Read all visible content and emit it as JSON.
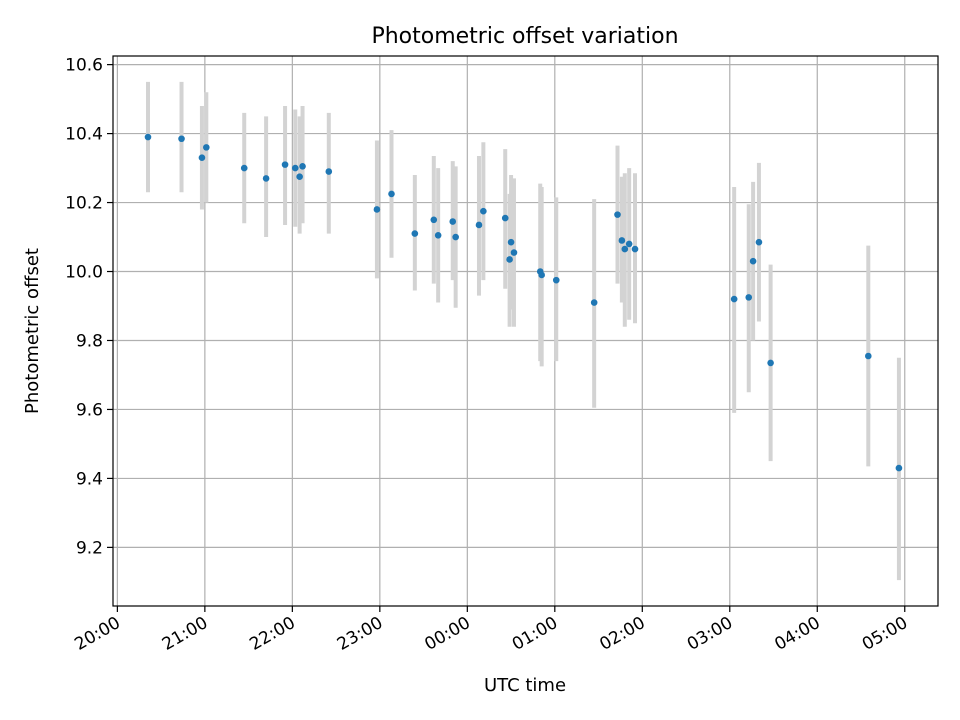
{
  "chart_data": {
    "type": "scatter",
    "title": "Photometric offset variation",
    "xlabel": "UTC time",
    "ylabel": "Photometric offset",
    "grid": true,
    "xlim_hours": [
      -4.05,
      5.38
    ],
    "ylim": [
      9.03,
      10.625
    ],
    "x_ticks": [
      {
        "h": -4,
        "label": "20:00"
      },
      {
        "h": -3,
        "label": "21:00"
      },
      {
        "h": -2,
        "label": "22:00"
      },
      {
        "h": -1,
        "label": "23:00"
      },
      {
        "h": 0,
        "label": "00:00"
      },
      {
        "h": 1,
        "label": "01:00"
      },
      {
        "h": 2,
        "label": "02:00"
      },
      {
        "h": 3,
        "label": "03:00"
      },
      {
        "h": 4,
        "label": "04:00"
      },
      {
        "h": 5,
        "label": "05:00"
      }
    ],
    "y_ticks": [
      {
        "v": 9.2,
        "label": "9.2"
      },
      {
        "v": 9.4,
        "label": "9.4"
      },
      {
        "v": 9.6,
        "label": "9.6"
      },
      {
        "v": 9.8,
        "label": "9.8"
      },
      {
        "v": 10.0,
        "label": "10.0"
      },
      {
        "v": 10.2,
        "label": "10.2"
      },
      {
        "v": 10.4,
        "label": "10.4"
      },
      {
        "v": 10.6,
        "label": "10.6"
      }
    ],
    "point_color": "#1f77b4",
    "errorbar_color": "#d3d3d3",
    "points": [
      {
        "time": "20:21",
        "y": 10.39,
        "lo": 10.23,
        "hi": 10.55
      },
      {
        "time": "20:44",
        "y": 10.385,
        "lo": 10.23,
        "hi": 10.55
      },
      {
        "time": "20:58",
        "y": 10.33,
        "lo": 10.18,
        "hi": 10.48
      },
      {
        "time": "21:01",
        "y": 10.36,
        "lo": 10.2,
        "hi": 10.52
      },
      {
        "time": "21:27",
        "y": 10.3,
        "lo": 10.14,
        "hi": 10.46
      },
      {
        "time": "21:42",
        "y": 10.27,
        "lo": 10.1,
        "hi": 10.45
      },
      {
        "time": "21:55",
        "y": 10.31,
        "lo": 10.135,
        "hi": 10.48
      },
      {
        "time": "22:02",
        "y": 10.3,
        "lo": 10.13,
        "hi": 10.47
      },
      {
        "time": "22:05",
        "y": 10.275,
        "lo": 10.11,
        "hi": 10.45
      },
      {
        "time": "22:07",
        "y": 10.305,
        "lo": 10.14,
        "hi": 10.48
      },
      {
        "time": "22:25",
        "y": 10.29,
        "lo": 10.11,
        "hi": 10.46
      },
      {
        "time": "22:58",
        "y": 10.18,
        "lo": 9.98,
        "hi": 10.38
      },
      {
        "time": "23:08",
        "y": 10.225,
        "lo": 10.04,
        "hi": 10.41
      },
      {
        "time": "23:24",
        "y": 10.11,
        "lo": 9.945,
        "hi": 10.28
      },
      {
        "time": "23:37",
        "y": 10.15,
        "lo": 9.965,
        "hi": 10.335
      },
      {
        "time": "23:40",
        "y": 10.105,
        "lo": 9.91,
        "hi": 10.3
      },
      {
        "time": "23:50",
        "y": 10.145,
        "lo": 9.975,
        "hi": 10.32
      },
      {
        "time": "23:52",
        "y": 10.1,
        "lo": 9.895,
        "hi": 10.305
      },
      {
        "time": "00:08",
        "y": 10.135,
        "lo": 9.93,
        "hi": 10.335
      },
      {
        "time": "00:11",
        "y": 10.175,
        "lo": 9.975,
        "hi": 10.375
      },
      {
        "time": "00:26",
        "y": 10.155,
        "lo": 9.95,
        "hi": 10.355
      },
      {
        "time": "00:29",
        "y": 10.035,
        "lo": 9.84,
        "hi": 10.225
      },
      {
        "time": "00:30",
        "y": 10.085,
        "lo": 9.89,
        "hi": 10.28
      },
      {
        "time": "00:32",
        "y": 10.055,
        "lo": 9.84,
        "hi": 10.27
      },
      {
        "time": "00:50",
        "y": 10.0,
        "lo": 9.74,
        "hi": 10.255
      },
      {
        "time": "00:51",
        "y": 9.99,
        "lo": 9.725,
        "hi": 10.245
      },
      {
        "time": "01:01",
        "y": 9.975,
        "lo": 9.74,
        "hi": 10.215
      },
      {
        "time": "01:27",
        "y": 9.91,
        "lo": 9.605,
        "hi": 10.21
      },
      {
        "time": "01:43",
        "y": 10.165,
        "lo": 9.965,
        "hi": 10.365
      },
      {
        "time": "01:46",
        "y": 10.09,
        "lo": 9.91,
        "hi": 10.275
      },
      {
        "time": "01:48",
        "y": 10.065,
        "lo": 9.84,
        "hi": 10.285
      },
      {
        "time": "01:51",
        "y": 10.08,
        "lo": 9.86,
        "hi": 10.3
      },
      {
        "time": "01:55",
        "y": 10.065,
        "lo": 9.85,
        "hi": 10.285
      },
      {
        "time": "03:03",
        "y": 9.92,
        "lo": 9.59,
        "hi": 10.245
      },
      {
        "time": "03:13",
        "y": 9.925,
        "lo": 9.65,
        "hi": 10.195
      },
      {
        "time": "03:16",
        "y": 10.03,
        "lo": 9.8,
        "hi": 10.26
      },
      {
        "time": "03:20",
        "y": 10.085,
        "lo": 9.855,
        "hi": 10.315
      },
      {
        "time": "03:28",
        "y": 9.735,
        "lo": 9.45,
        "hi": 10.02
      },
      {
        "time": "04:35",
        "y": 9.755,
        "lo": 9.435,
        "hi": 10.075
      },
      {
        "time": "04:56",
        "y": 9.43,
        "lo": 9.105,
        "hi": 9.75
      }
    ]
  }
}
